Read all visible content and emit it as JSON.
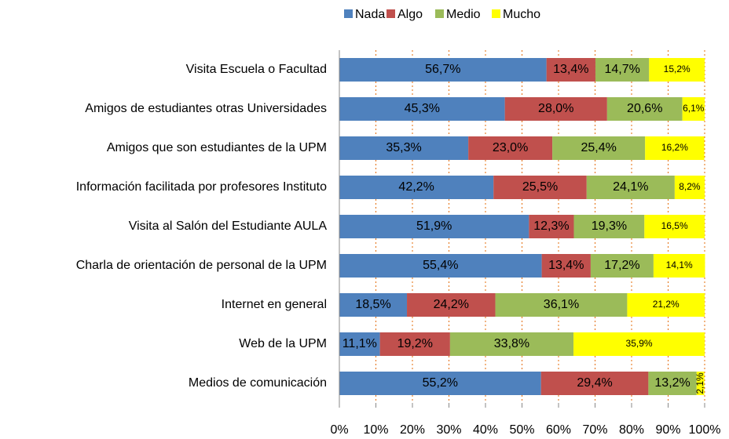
{
  "chart_data": {
    "type": "bar",
    "orientation": "horizontal",
    "stacked": true,
    "categories": [
      "Visita Escuela o Facultad",
      "Amigos de estudiantes otras Universidades",
      "Amigos que son estudiantes de la UPM",
      "Información facilitada por profesores Instituto",
      "Visita al Salón del Estudiante AULA",
      "Charla de orientación de personal de la UPM",
      "Internet en general",
      "Web de la UPM",
      "Medios de comunicación"
    ],
    "series": [
      {
        "name": "Nada",
        "color": "#4f81bd",
        "values": [
          56.7,
          45.3,
          35.3,
          42.2,
          51.9,
          55.4,
          18.5,
          11.1,
          55.2
        ],
        "value_labels": [
          "56,7%",
          "45,3%",
          "35,3%",
          "42,2%",
          "51,9%",
          "55,4%",
          "18,5%",
          "11,1%",
          "55,2%"
        ]
      },
      {
        "name": "Algo",
        "color": "#c0504d",
        "values": [
          13.4,
          28.0,
          23.0,
          25.5,
          12.3,
          13.4,
          24.2,
          19.2,
          29.4
        ],
        "value_labels": [
          "13,4%",
          "28,0%",
          "23,0%",
          "25,5%",
          "12,3%",
          "13,4%",
          "24,2%",
          "19,2%",
          "29,4%"
        ]
      },
      {
        "name": "Medio",
        "color": "#9bbb59",
        "values": [
          14.7,
          20.6,
          25.4,
          24.1,
          19.3,
          17.2,
          36.1,
          33.8,
          13.2
        ],
        "value_labels": [
          "14,7%",
          "20,6%",
          "25,4%",
          "24,1%",
          "19,3%",
          "17,2%",
          "36,1%",
          "33,8%",
          "13,2%"
        ]
      },
      {
        "name": "Mucho",
        "color": "#ffff00",
        "values": [
          15.2,
          6.1,
          16.2,
          8.2,
          16.5,
          14.1,
          21.2,
          35.9,
          2.1
        ],
        "value_labels": [
          "15,2%",
          "6,1%",
          "16,2%",
          "8,2%",
          "16,5%",
          "14,1%",
          "21,2%",
          "35,9%",
          "2,1%"
        ]
      }
    ],
    "xlim": [
      0,
      100
    ],
    "xticks": [
      {
        "value": 0,
        "label": "0%"
      },
      {
        "value": 10,
        "label": "10%"
      },
      {
        "value": 20,
        "label": "20%"
      },
      {
        "value": 30,
        "label": "30%"
      },
      {
        "value": 40,
        "label": "40%"
      },
      {
        "value": 50,
        "label": "50%"
      },
      {
        "value": 60,
        "label": "60%"
      },
      {
        "value": 70,
        "label": "70%"
      },
      {
        "value": 80,
        "label": "80%"
      },
      {
        "value": 90,
        "label": "90%"
      },
      {
        "value": 100,
        "label": "100%"
      }
    ],
    "grid": true,
    "grid_color": "#e46c0a",
    "legend": "top"
  }
}
